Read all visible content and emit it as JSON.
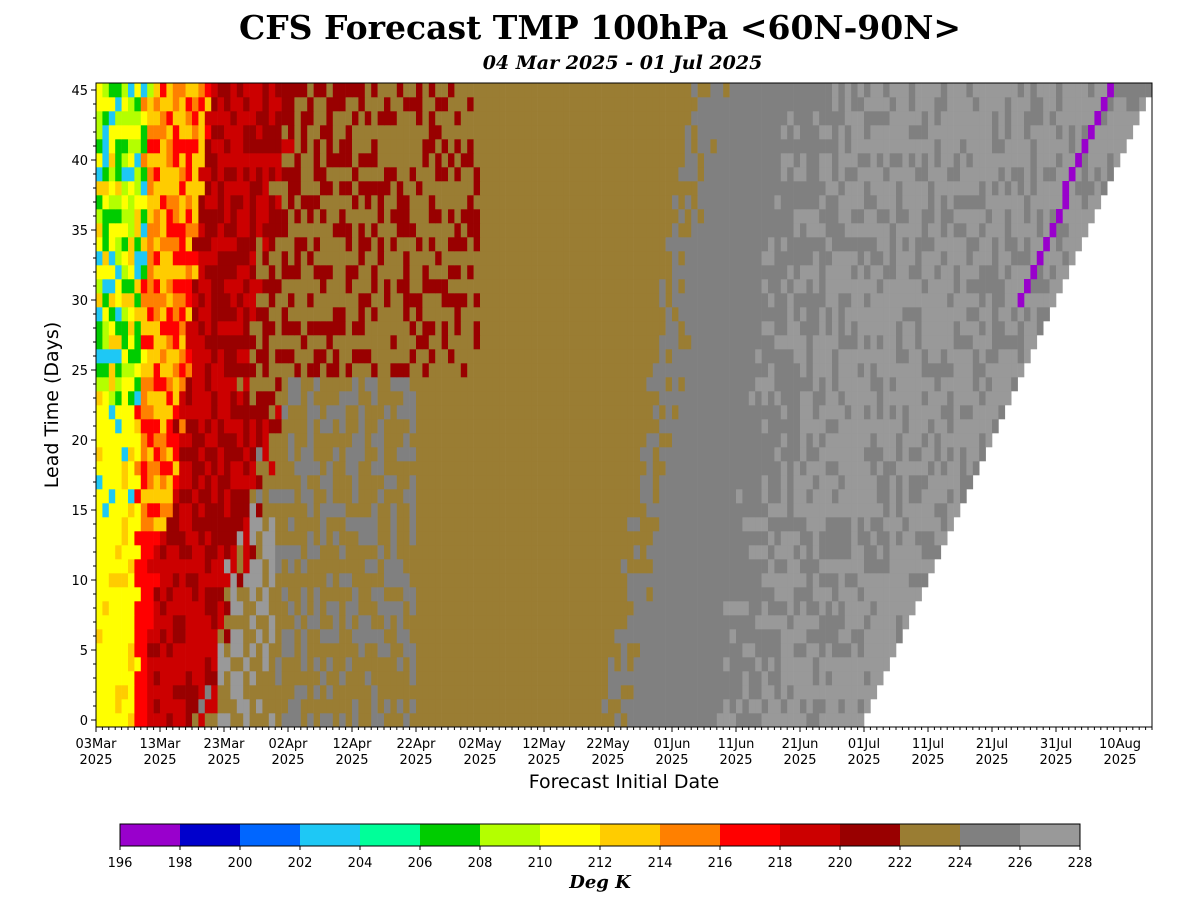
{
  "title": "CFS Forecast TMP 100hPa <60N-90N>",
  "subtitle": "04 Mar 2025 - 01 Jul 2025",
  "chart_data": {
    "type": "heatmap",
    "xlabel": "Forecast Initial Date",
    "ylabel": "Lead Time (Days)",
    "x_ticks": [
      {
        "d1": "03Mar",
        "d2": "2025",
        "day": 0
      },
      {
        "d1": "13Mar",
        "d2": "2025",
        "day": 10
      },
      {
        "d1": "23Mar",
        "d2": "2025",
        "day": 20
      },
      {
        "d1": "02Apr",
        "d2": "2025",
        "day": 30
      },
      {
        "d1": "12Apr",
        "d2": "2025",
        "day": 40
      },
      {
        "d1": "22Apr",
        "d2": "2025",
        "day": 50
      },
      {
        "d1": "02May",
        "d2": "2025",
        "day": 60
      },
      {
        "d1": "12May",
        "d2": "2025",
        "day": 70
      },
      {
        "d1": "22May",
        "d2": "2025",
        "day": 80
      },
      {
        "d1": "01Jun",
        "d2": "2025",
        "day": 90
      },
      {
        "d1": "11Jun",
        "d2": "2025",
        "day": 100
      },
      {
        "d1": "21Jun",
        "d2": "2025",
        "day": 110
      },
      {
        "d1": "01Jul",
        "d2": "2025",
        "day": 120
      },
      {
        "d1": "11Jul",
        "d2": "2025",
        "day": 130
      },
      {
        "d1": "21Jul",
        "d2": "2025",
        "day": 140
      },
      {
        "d1": "31Jul",
        "d2": "2025",
        "day": 150
      },
      {
        "d1": "10Aug",
        "d2": "2025",
        "day": 160
      }
    ],
    "y_ticks": [
      "0",
      "5",
      "10",
      "15",
      "20",
      "25",
      "30",
      "35",
      "40",
      "45"
    ],
    "xlim": [
      0,
      165
    ],
    "ylim": [
      -0.5,
      45.5
    ],
    "colorbar": {
      "label": "Deg K",
      "ticks": [
        "196",
        "198",
        "200",
        "202",
        "204",
        "206",
        "208",
        "210",
        "212",
        "214",
        "216",
        "218",
        "220",
        "222",
        "224",
        "226",
        "228"
      ],
      "colors": [
        "#9900cc",
        "#0000cc",
        "#0066ff",
        "#1ec8f5",
        "#00ff99",
        "#00cc00",
        "#b4ff00",
        "#ffff00",
        "#ffcc00",
        "#ff8000",
        "#ff0000",
        "#cc0000",
        "#990000",
        "#9a7d33",
        "#808080",
        "#999999"
      ]
    },
    "regions": [
      {
        "name": "yellow 210-212",
        "y0": 0,
        "x_lead0": 0.3,
        "x_at45": 1,
        "x_end_lead0": 5.5,
        "x_end_at45": 8
      },
      {
        "name": "red 218-222",
        "x_start_lead0": 7.5,
        "x_end_lead0": 16,
        "x_end_at45": 40
      },
      {
        "name": "olive 222-224",
        "x_start_lead0": 18,
        "x_end_lead0": 79,
        "x_end_at45": 93
      },
      {
        "name": "dark gray 224-226",
        "x_start_lead0": 79,
        "x_end_lead0": 105
      },
      {
        "name": "light gray 226-228",
        "x_start_lead0": 105,
        "x_end_lead0": 120
      },
      {
        "name": "purple 196-198",
        "x_lead30": 144,
        "x_lead45": 158
      }
    ],
    "data_note": "forecast valid through day 120 (01 Jul 2025); upper-right triangle empty"
  }
}
